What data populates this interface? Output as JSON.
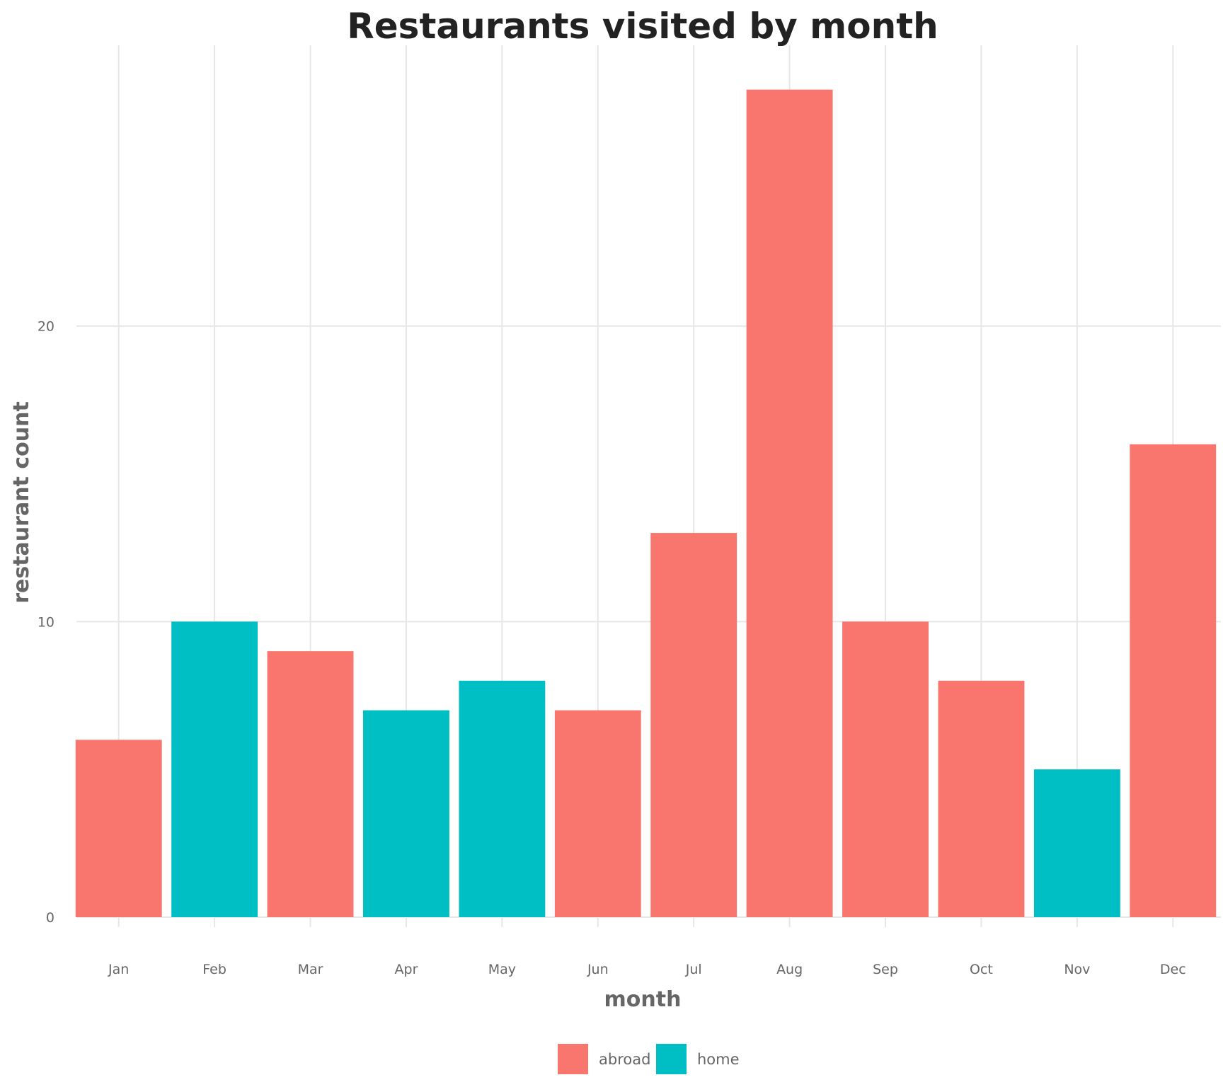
{
  "chart_data": {
    "type": "bar",
    "title": "Restaurants visited by month",
    "xlabel": "month",
    "ylabel": "restaurant count",
    "categories": [
      "Jan",
      "Feb",
      "Mar",
      "Apr",
      "May",
      "Jun",
      "Jul",
      "Aug",
      "Sep",
      "Oct",
      "Nov",
      "Dec"
    ],
    "values": [
      6,
      10,
      9,
      7,
      8,
      7,
      13,
      28,
      10,
      8,
      5,
      16
    ],
    "groups": [
      "abroad",
      "home",
      "abroad",
      "home",
      "home",
      "abroad",
      "abroad",
      "abroad",
      "abroad",
      "abroad",
      "home",
      "abroad"
    ],
    "legend": [
      {
        "name": "abroad",
        "color": "#F8766D"
      },
      {
        "name": "home",
        "color": "#00BFC4"
      }
    ],
    "yticks": [
      0,
      10,
      20
    ],
    "ylim": [
      0,
      29.5
    ],
    "grid": true,
    "legend_position": "bottom"
  }
}
